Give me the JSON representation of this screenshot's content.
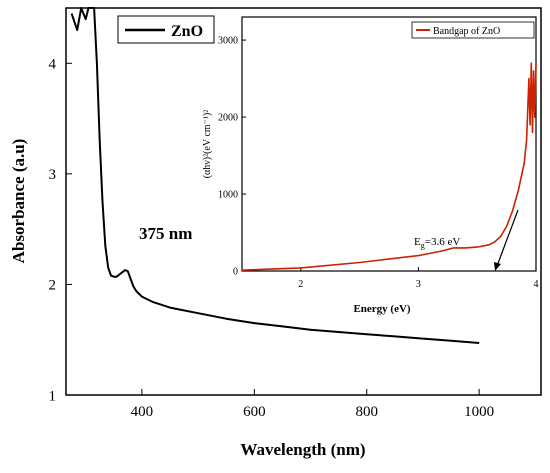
{
  "chart_data": [
    {
      "type": "line",
      "title": "",
      "xlabel": "Wavelength (nm)",
      "ylabel": "Absorbance (a.u)",
      "xlim": [
        265,
        1110
      ],
      "ylim": [
        1,
        4.5
      ],
      "xticks": [
        400,
        600,
        800,
        1000
      ],
      "yticks": [
        1,
        2,
        3,
        4
      ],
      "grid": false,
      "legend_position": "top-left",
      "series": [
        {
          "name": "ZnO",
          "color": "#000000",
          "x": [
            275,
            285,
            292,
            300,
            305,
            310,
            315,
            320,
            325,
            330,
            335,
            340,
            345,
            350,
            355,
            360,
            365,
            370,
            375,
            380,
            385,
            390,
            400,
            420,
            450,
            500,
            550,
            600,
            650,
            700,
            750,
            800,
            850,
            900,
            950,
            1000
          ],
          "y": [
            4.45,
            4.3,
            4.5,
            4.4,
            4.5,
            4.5,
            4.5,
            4.0,
            3.3,
            2.75,
            2.35,
            2.15,
            2.08,
            2.07,
            2.07,
            2.09,
            2.11,
            2.13,
            2.12,
            2.05,
            1.98,
            1.94,
            1.89,
            1.84,
            1.79,
            1.74,
            1.69,
            1.65,
            1.62,
            1.59,
            1.57,
            1.55,
            1.53,
            1.51,
            1.49,
            1.47
          ]
        }
      ],
      "annotations": [
        {
          "text": "375 nm",
          "x": 375,
          "y": 2.45
        }
      ]
    },
    {
      "type": "line",
      "title": "",
      "xlabel": "Energy (eV)",
      "ylabel": "(αhν)²(eV cm⁻¹)²",
      "xlim": [
        1.5,
        4.0
      ],
      "ylim": [
        0,
        3300
      ],
      "xticks": [
        2,
        3,
        4
      ],
      "yticks": [
        0,
        1000,
        2000,
        3000
      ],
      "grid": false,
      "legend_position": "top-right",
      "series": [
        {
          "name": "Bandgap of ZnO",
          "color": "#cc2200",
          "x": [
            1.5,
            2.0,
            2.5,
            3.0,
            3.2,
            3.3,
            3.4,
            3.5,
            3.6,
            3.65,
            3.7,
            3.75,
            3.8,
            3.85,
            3.9,
            3.92,
            3.94,
            3.95,
            3.96,
            3.97,
            3.98,
            3.99,
            4.0
          ],
          "y": [
            10,
            40,
            110,
            200,
            260,
            300,
            300,
            310,
            340,
            380,
            450,
            580,
            780,
            1050,
            1400,
            1700,
            2500,
            1900,
            2700,
            1800,
            2600,
            2000,
            2700
          ]
        }
      ],
      "annotations": [
        {
          "text": "E",
          "sub": "g",
          "rest": "=3.6 eV",
          "x": 3.6,
          "y": 600
        }
      ]
    }
  ]
}
